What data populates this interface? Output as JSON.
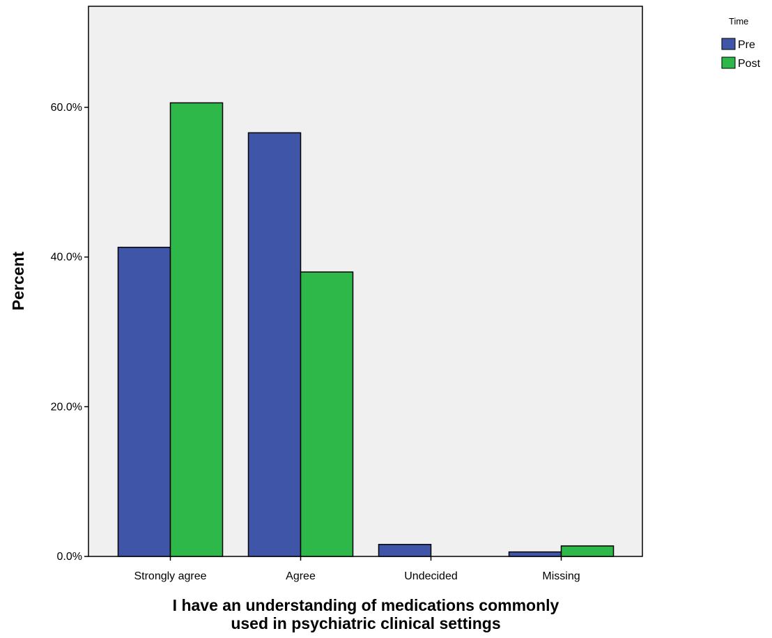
{
  "chart_data": {
    "type": "bar",
    "categories": [
      "Strongly agree",
      "Agree",
      "Undecided",
      "Missing"
    ],
    "series": [
      {
        "name": "Pre",
        "values": [
          41.3,
          56.6,
          1.6,
          0.6
        ],
        "color": "#3f56a8"
      },
      {
        "name": "Post",
        "values": [
          60.6,
          38.0,
          0.0,
          1.4
        ],
        "color": "#2fb84a"
      }
    ],
    "ylabel": "Percent",
    "xlabel_lines": [
      "I have an understanding of medications commonly",
      "used in psychiatric clinical settings"
    ],
    "ylim": [
      0,
      73.5
    ],
    "yticks": [
      0,
      20,
      40,
      60
    ],
    "ytick_labels": [
      "0.0%",
      "20.0%",
      "40.0%",
      "60.0%"
    ],
    "legend": {
      "title": "Time",
      "entries": [
        "Pre",
        "Post"
      ],
      "placement": "top-right, outside plot"
    },
    "grid": false,
    "plot_background": "#f0f0f0"
  }
}
